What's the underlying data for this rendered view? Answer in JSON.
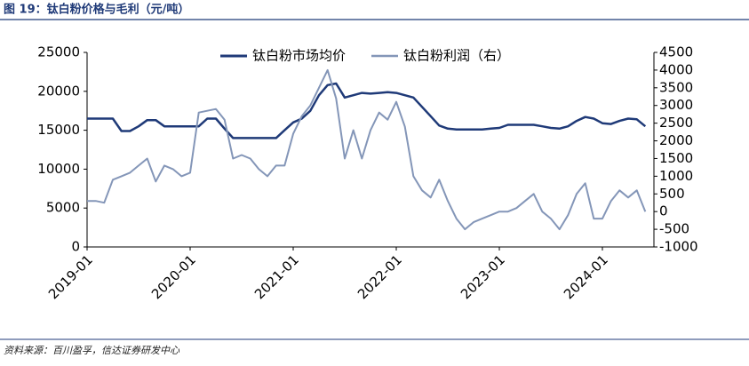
{
  "chart_data": {
    "type": "line",
    "title": "图 19：钛白粉价格与毛利（元/吨）",
    "source": "资料来源：百川盈孚，信达证券研发中心",
    "legend": "top",
    "x": [
      "2019-01",
      "2019-02",
      "2019-03",
      "2019-04",
      "2019-05",
      "2019-06",
      "2019-07",
      "2019-08",
      "2019-09",
      "2019-10",
      "2019-11",
      "2019-12",
      "2020-01",
      "2020-02",
      "2020-03",
      "2020-04",
      "2020-05",
      "2020-06",
      "2020-07",
      "2020-08",
      "2020-09",
      "2020-10",
      "2020-11",
      "2020-12",
      "2021-01",
      "2021-02",
      "2021-03",
      "2021-04",
      "2021-05",
      "2021-06",
      "2021-07",
      "2021-08",
      "2021-09",
      "2021-10",
      "2021-11",
      "2021-12",
      "2022-01",
      "2022-02",
      "2022-03",
      "2022-04",
      "2022-05",
      "2022-06",
      "2022-07",
      "2022-08",
      "2022-09",
      "2022-10",
      "2022-11",
      "2022-12",
      "2023-01",
      "2023-02",
      "2023-03",
      "2023-04",
      "2023-05",
      "2023-06",
      "2023-07",
      "2023-08",
      "2023-09",
      "2023-10",
      "2023-11",
      "2023-12",
      "2024-01",
      "2024-02",
      "2024-03",
      "2024-04",
      "2024-05",
      "2024-06"
    ],
    "xlim": [
      "2019-01",
      "2024-07"
    ],
    "xticks": [
      "2019-01",
      "2020-01",
      "2021-01",
      "2022-01",
      "2023-01",
      "2024-01"
    ],
    "ylim": [
      0,
      25000
    ],
    "yticks": [
      0,
      5000,
      10000,
      15000,
      20000,
      25000
    ],
    "y2lim": [
      -1000,
      4500
    ],
    "y2ticks": [
      -1000,
      -500,
      0,
      500,
      1000,
      1500,
      2000,
      2500,
      3000,
      3500,
      4000,
      4500
    ],
    "series": [
      {
        "name": "钛白粉市场均价",
        "color": "#1f3a78",
        "values": [
          16500,
          16500,
          16500,
          16500,
          14900,
          14900,
          15500,
          16300,
          16300,
          15500,
          15500,
          15500,
          15500,
          15500,
          16500,
          16500,
          15200,
          14000,
          14000,
          14000,
          14000,
          14000,
          14000,
          15000,
          16000,
          16500,
          17500,
          19500,
          20800,
          21000,
          19200,
          19500,
          19800,
          19700,
          19800,
          19900,
          19800,
          19500,
          19200,
          18000,
          16800,
          15600,
          15200,
          15100,
          15100,
          15100,
          15100,
          15200,
          15300,
          15700,
          15700,
          15700,
          15700,
          15500,
          15300,
          15200,
          15500,
          16200,
          16700,
          16500,
          15900,
          15800,
          16200,
          16500,
          16400,
          15500
        ]
      },
      {
        "name": "钛白粉利润（右）",
        "color": "#8496b8",
        "axis": "y2",
        "values": [
          300,
          300,
          250,
          900,
          1000,
          1100,
          1300,
          1500,
          850,
          1300,
          1200,
          1000,
          1100,
          2800,
          2850,
          2900,
          2600,
          1500,
          1600,
          1500,
          1200,
          1000,
          1300,
          1300,
          2200,
          2700,
          3000,
          3500,
          4000,
          3200,
          1500,
          2300,
          1500,
          2300,
          2800,
          2600,
          3100,
          2400,
          1000,
          600,
          400,
          900,
          300,
          -200,
          -500,
          -300,
          -200,
          -100,
          0,
          0,
          100,
          300,
          500,
          0,
          -200,
          -500,
          -100,
          500,
          800,
          -200,
          -200,
          300,
          600,
          400,
          600,
          0
        ]
      }
    ]
  }
}
